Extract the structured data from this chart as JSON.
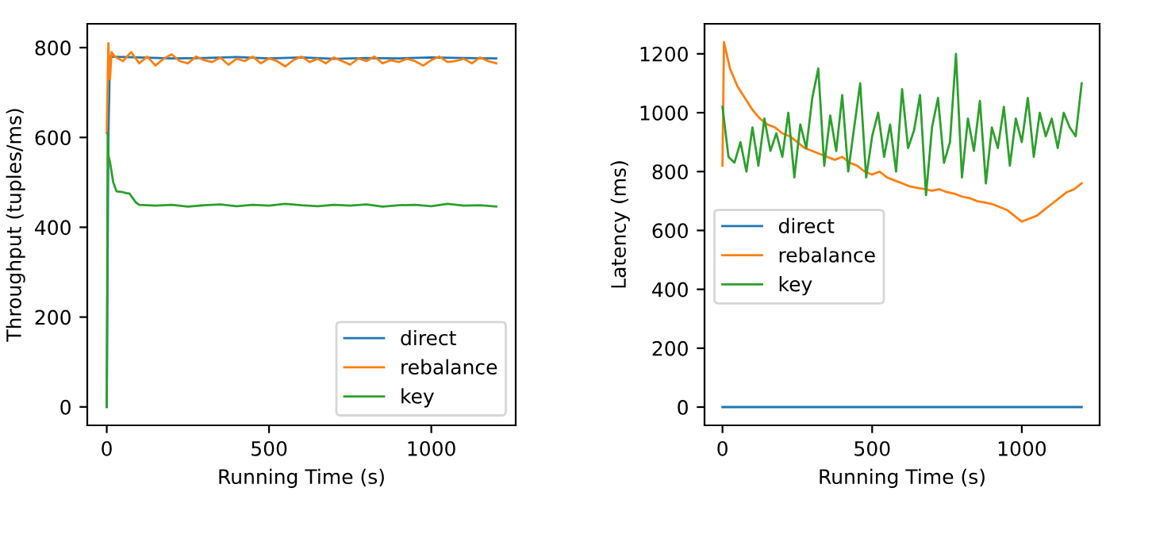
{
  "chart_data": [
    {
      "type": "line",
      "xlabel": "Running Time (s)",
      "ylabel": "Throughput (tuples/ms)",
      "xlim": [
        -60,
        1260
      ],
      "ylim": [
        -41,
        853
      ],
      "xticks": [
        0,
        500,
        1000
      ],
      "yticks": [
        0,
        200,
        400,
        600,
        800
      ],
      "grid": false,
      "legend": "bottom right",
      "series": [
        {
          "name": "direct",
          "color": "#1f77b4",
          "x": [
            0,
            5,
            10,
            100,
            200,
            300,
            400,
            500,
            600,
            700,
            800,
            900,
            1000,
            1100,
            1200
          ],
          "values": [
            0,
            600,
            780,
            778,
            776,
            777,
            779,
            776,
            778,
            775,
            777,
            776,
            778,
            777,
            776
          ]
        },
        {
          "name": "rebalance",
          "color": "#ff7f0e",
          "x": [
            0,
            5,
            10,
            15,
            25,
            50,
            75,
            100,
            125,
            150,
            175,
            200,
            225,
            250,
            275,
            300,
            325,
            350,
            375,
            400,
            425,
            450,
            475,
            500,
            525,
            550,
            575,
            600,
            625,
            650,
            675,
            700,
            725,
            750,
            775,
            800,
            825,
            850,
            875,
            900,
            925,
            950,
            975,
            1000,
            1025,
            1050,
            1075,
            1100,
            1125,
            1150,
            1175,
            1200
          ],
          "values": [
            610,
            810,
            730,
            790,
            780,
            770,
            790,
            765,
            780,
            760,
            775,
            785,
            770,
            765,
            780,
            772,
            768,
            778,
            762,
            775,
            770,
            780,
            765,
            776,
            770,
            758,
            772,
            780,
            768,
            775,
            765,
            778,
            770,
            762,
            776,
            770,
            780,
            765,
            772,
            768,
            775,
            770,
            760,
            772,
            780,
            768,
            770,
            775,
            765,
            778,
            770,
            765
          ]
        },
        {
          "name": "key",
          "color": "#2ca02c",
          "x": [
            0,
            3,
            5,
            10,
            20,
            30,
            50,
            60,
            70,
            80,
            90,
            100,
            150,
            200,
            250,
            300,
            350,
            400,
            450,
            500,
            550,
            600,
            650,
            700,
            750,
            800,
            850,
            900,
            950,
            1000,
            1050,
            1100,
            1150,
            1200
          ],
          "values": [
            0,
            610,
            560,
            545,
            500,
            480,
            478,
            476,
            475,
            465,
            455,
            450,
            448,
            450,
            446,
            449,
            451,
            447,
            450,
            448,
            452,
            449,
            447,
            450,
            448,
            451,
            446,
            449,
            450,
            447,
            452,
            448,
            449,
            446
          ]
        }
      ]
    },
    {
      "type": "line",
      "xlabel": "Running Time (s)",
      "ylabel": "Latency (ms)",
      "xlim": [
        -60,
        1260
      ],
      "ylim": [
        -62,
        1302
      ],
      "xticks": [
        0,
        500,
        1000
      ],
      "yticks": [
        0,
        200,
        400,
        600,
        800,
        1000,
        1200
      ],
      "grid": false,
      "legend": "left",
      "series": [
        {
          "name": "direct",
          "color": "#1f77b4",
          "x": [
            0,
            1200
          ],
          "values": [
            0,
            0
          ]
        },
        {
          "name": "rebalance",
          "color": "#ff7f0e",
          "x": [
            0,
            5,
            25,
            50,
            75,
            100,
            125,
            150,
            175,
            200,
            225,
            250,
            275,
            300,
            325,
            350,
            375,
            400,
            425,
            450,
            475,
            500,
            525,
            550,
            575,
            600,
            625,
            650,
            675,
            700,
            725,
            750,
            775,
            800,
            825,
            850,
            875,
            900,
            925,
            950,
            975,
            1000,
            1025,
            1050,
            1075,
            1100,
            1125,
            1150,
            1175,
            1200
          ],
          "values": [
            820,
            1240,
            1150,
            1090,
            1050,
            1010,
            980,
            960,
            950,
            930,
            920,
            900,
            880,
            870,
            860,
            850,
            840,
            850,
            830,
            820,
            800,
            790,
            800,
            780,
            770,
            760,
            750,
            745,
            740,
            735,
            740,
            730,
            725,
            715,
            710,
            700,
            695,
            690,
            680,
            670,
            650,
            630,
            640,
            650,
            670,
            690,
            710,
            730,
            740,
            760
          ]
        },
        {
          "name": "key",
          "color": "#2ca02c",
          "x": [
            0,
            20,
            40,
            60,
            80,
            100,
            120,
            140,
            160,
            180,
            200,
            220,
            240,
            260,
            280,
            300,
            320,
            340,
            360,
            380,
            400,
            420,
            440,
            460,
            480,
            500,
            520,
            540,
            560,
            580,
            600,
            620,
            640,
            660,
            680,
            700,
            720,
            740,
            760,
            780,
            800,
            820,
            840,
            860,
            880,
            900,
            920,
            940,
            960,
            980,
            1000,
            1020,
            1040,
            1060,
            1080,
            1100,
            1120,
            1140,
            1160,
            1180,
            1200
          ],
          "values": [
            1020,
            850,
            830,
            900,
            800,
            950,
            820,
            980,
            870,
            930,
            850,
            1000,
            780,
            960,
            880,
            1050,
            1150,
            820,
            990,
            870,
            1060,
            800,
            950,
            1100,
            780,
            920,
            1000,
            850,
            960,
            800,
            1080,
            880,
            940,
            1060,
            720,
            950,
            1050,
            830,
            900,
            1200,
            780,
            980,
            870,
            1040,
            760,
            950,
            880,
            1020,
            820,
            980,
            900,
            1050,
            850,
            1000,
            920,
            980,
            880,
            1000,
            950,
            920,
            1100
          ]
        }
      ]
    }
  ]
}
